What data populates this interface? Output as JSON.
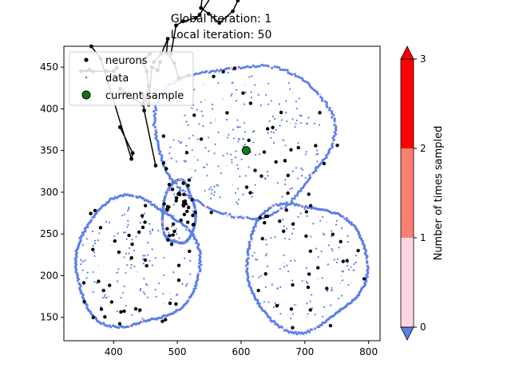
{
  "chart_data": {
    "type": "scatter",
    "title_line1": "Global iteration: 1",
    "title_line2": "Local iteration: 50",
    "xlim": [
      322,
      818
    ],
    "ylim": [
      122,
      475
    ],
    "xticks": [
      400,
      500,
      600,
      700,
      800
    ],
    "yticks": [
      150,
      200,
      250,
      300,
      350,
      400,
      450
    ],
    "legend": {
      "placement": "upper-left",
      "entries": [
        {
          "label": "neurons",
          "color": "#000000"
        },
        {
          "label": "data",
          "color": "#5b7fe8"
        },
        {
          "label": "current sample",
          "color": "#0e7c0e"
        }
      ]
    },
    "colorbar": {
      "label": "Number of times sampled",
      "ticks": [
        "0",
        "1",
        "2",
        "3"
      ],
      "levels": [
        {
          "from": 0,
          "to": 1,
          "color": "#ffd6e2"
        },
        {
          "from": 1,
          "to": 2,
          "color": "#fa8072"
        },
        {
          "from": 2,
          "to": 3,
          "color": "#ff0000"
        }
      ],
      "under_color": "#5b7fe8",
      "over_color": "#ff0000"
    },
    "colors": {
      "data": "#5b7fe8",
      "sampled_once": "#ffc8d2",
      "neuron": "#000000",
      "current": "#0e7c0e"
    },
    "current_sample": [
      608,
      350
    ],
    "clusters": [
      {
        "cx": 603,
        "cy": 365,
        "rx": 140,
        "ry": 91
      },
      {
        "cx": 700,
        "cy": 212,
        "rx": 95,
        "ry": 76
      },
      {
        "cx": 435,
        "cy": 215,
        "rx": 98,
        "ry": 77
      },
      {
        "cx": 502,
        "cy": 275,
        "rx": 26,
        "ry": 38
      }
    ],
    "neuron_chains": [
      [
        [
          405,
          449
        ],
        [
          400,
          445
        ],
        [
          388,
          445
        ],
        [
          368,
          445
        ],
        [
          349,
          445
        ],
        [
          362,
          447
        ]
      ],
      [
        [
          365,
          475
        ],
        [
          380,
          460
        ],
        [
          428,
          340
        ],
        [
          430,
          347
        ],
        [
          410,
          378
        ]
      ],
      [
        [
          466,
          332
        ],
        [
          448,
          398
        ],
        [
          445,
          418
        ],
        [
          455,
          405
        ],
        [
          460,
          450
        ],
        [
          469,
          446
        ],
        [
          473,
          456
        ]
      ],
      [
        [
          463,
          456
        ],
        [
          475,
          466
        ],
        [
          485,
          484
        ],
        [
          483,
          467
        ],
        [
          495,
          455
        ],
        [
          502,
          437
        ],
        [
          518,
          440
        ]
      ],
      [
        [
          541,
          545
        ],
        [
          537,
          521
        ],
        [
          549,
          514
        ],
        [
          566,
          503
        ],
        [
          587,
          517
        ],
        [
          595,
          530
        ],
        [
          603,
          538
        ]
      ],
      [
        [
          620,
          608
        ],
        [
          628,
          627
        ],
        [
          635,
          633
        ],
        [
          665,
          720
        ],
        [
          665,
          749
        ],
        [
          680,
          768
        ],
        [
          730,
          744
        ],
        [
          764,
          762
        ]
      ],
      [
        [
          788,
          744
        ],
        [
          780,
          751
        ],
        [
          770,
          760
        ],
        [
          750,
          752
        ],
        [
          741,
          760
        ],
        [
          752,
          740
        ],
        [
          764,
          718
        ],
        [
          781,
          700
        ]
      ],
      [
        [
          764,
          780
        ],
        [
          741,
          762
        ],
        [
          716,
          748
        ],
        [
          732,
          736
        ],
        [
          761,
          720
        ],
        [
          780,
          703
        ],
        [
          789,
          693
        ],
        [
          787,
          680
        ]
      ],
      [
        [
          764,
          760
        ],
        [
          741,
          754
        ],
        [
          715,
          714
        ],
        [
          705,
          717
        ],
        [
          703,
          670
        ],
        [
          689,
          651
        ],
        [
          670,
          633
        ],
        [
          661,
          629
        ]
      ],
      [
        [
          657,
          645
        ],
        [
          640,
          631
        ],
        [
          637,
          615
        ],
        [
          625,
          613
        ],
        [
          612,
          605
        ],
        [
          598,
          595
        ],
        [
          592,
          585
        ],
        [
          584,
          571
        ]
      ],
      [
        [
          549,
          556
        ],
        [
          552,
          546
        ],
        [
          556,
          538
        ],
        [
          535,
          513
        ],
        [
          529,
          509
        ],
        [
          509,
          505
        ],
        [
          498,
          500
        ],
        [
          490,
          466
        ]
      ],
      [
        [
          457,
          466
        ],
        [
          445,
          457
        ],
        [
          452,
          445
        ],
        [
          455,
          427
        ],
        [
          453,
          416
        ],
        [
          446,
          405
        ],
        [
          420,
          418
        ],
        [
          410,
          424
        ]
      ]
    ],
    "neurons_note": ""
  }
}
